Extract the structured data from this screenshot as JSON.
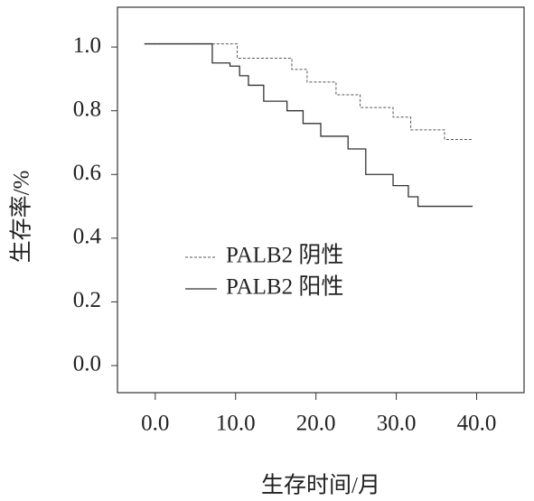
{
  "chart_data": {
    "type": "line",
    "step": true,
    "xlabel": "生存时间/月",
    "ylabel": "生存率/%",
    "xlim": [
      -4.7,
      45.9
    ],
    "ylim": [
      -0.085,
      1.125
    ],
    "xticks": [
      {
        "value": 0,
        "label": "0.0"
      },
      {
        "value": 10,
        "label": "10.0"
      },
      {
        "value": 20,
        "label": "20.0"
      },
      {
        "value": 30,
        "label": "30.0"
      },
      {
        "value": 40,
        "label": "40.0"
      }
    ],
    "yticks": [
      {
        "value": 0,
        "label": "0.0"
      },
      0.2,
      0.4,
      0.6,
      0.8,
      {
        "value": 1,
        "label": "1.0"
      }
    ],
    "series": [
      {
        "name": "PALB2 阴性",
        "color": "#555555",
        "dashed": true,
        "x": [
          -1.35,
          10.2,
          10.2,
          17.0,
          17.0,
          18.9,
          18.9,
          22.5,
          22.5,
          25.5,
          25.5,
          29.6,
          29.6,
          31.8,
          31.8,
          36.0,
          36.0,
          39.5
        ],
        "values": [
          1.01,
          1.01,
          0.965,
          0.965,
          0.93,
          0.93,
          0.89,
          0.89,
          0.85,
          0.85,
          0.81,
          0.81,
          0.78,
          0.78,
          0.74,
          0.74,
          0.71,
          0.71
        ]
      },
      {
        "name": "PALB2 阳性",
        "color": "#333333",
        "dashed": false,
        "x": [
          -1.35,
          7.1,
          7.1,
          9.3,
          9.3,
          10.5,
          10.5,
          11.6,
          11.6,
          13.5,
          13.5,
          16.4,
          16.4,
          18.4,
          18.4,
          20.6,
          20.6,
          24.0,
          24.0,
          26.2,
          26.2,
          29.6,
          29.6,
          31.5,
          31.5,
          32.7,
          32.7,
          39.5
        ],
        "values": [
          1.01,
          1.01,
          0.95,
          0.95,
          0.94,
          0.94,
          0.91,
          0.91,
          0.88,
          0.88,
          0.83,
          0.83,
          0.8,
          0.8,
          0.76,
          0.76,
          0.72,
          0.72,
          0.68,
          0.68,
          0.6,
          0.6,
          0.565,
          0.565,
          0.53,
          0.53,
          0.5,
          0.5
        ]
      }
    ]
  }
}
